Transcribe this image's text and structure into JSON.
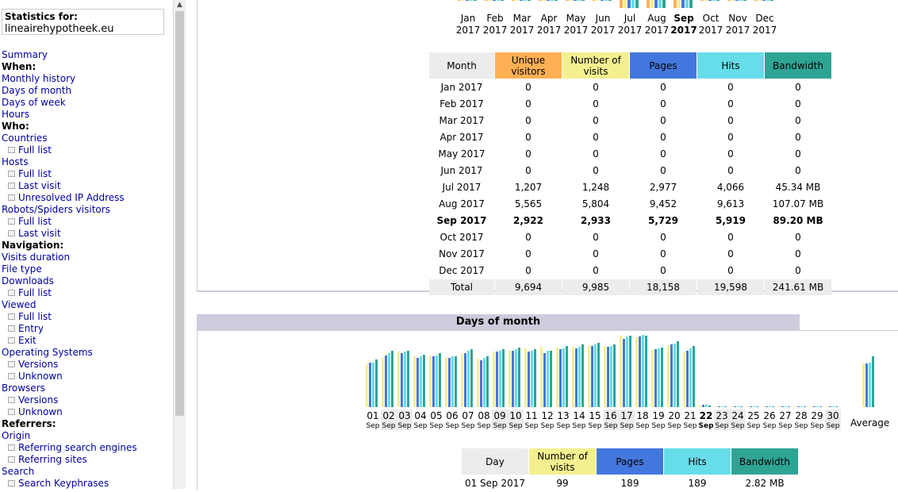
{
  "sidebar": {
    "stats_label": "Statistics for:",
    "site": "lineairehypotheek.eu",
    "menu": [
      {
        "text": "Summary",
        "type": "link"
      },
      {
        "text": "When:",
        "type": "head"
      },
      {
        "text": "Monthly history",
        "type": "link"
      },
      {
        "text": "Days of month",
        "type": "link"
      },
      {
        "text": "Days of week",
        "type": "link"
      },
      {
        "text": "Hours",
        "type": "link"
      },
      {
        "text": "Who:",
        "type": "head"
      },
      {
        "text": "Countries",
        "type": "link"
      },
      {
        "text": "Full list",
        "type": "sub"
      },
      {
        "text": "Hosts",
        "type": "link"
      },
      {
        "text": "Full list",
        "type": "sub"
      },
      {
        "text": "Last visit",
        "type": "sub"
      },
      {
        "text": "Unresolved IP Address",
        "type": "sub"
      },
      {
        "text": "Robots/Spiders visitors",
        "type": "link"
      },
      {
        "text": "Full list",
        "type": "sub"
      },
      {
        "text": "Last visit",
        "type": "sub"
      },
      {
        "text": "Navigation:",
        "type": "head"
      },
      {
        "text": "Visits duration",
        "type": "link"
      },
      {
        "text": "File type",
        "type": "link"
      },
      {
        "text": "Downloads",
        "type": "link"
      },
      {
        "text": "Full list",
        "type": "sub"
      },
      {
        "text": "Viewed",
        "type": "link"
      },
      {
        "text": "Full list",
        "type": "sub"
      },
      {
        "text": "Entry",
        "type": "sub"
      },
      {
        "text": "Exit",
        "type": "sub"
      },
      {
        "text": "Operating Systems",
        "type": "link"
      },
      {
        "text": "Versions",
        "type": "sub"
      },
      {
        "text": "Unknown",
        "type": "sub"
      },
      {
        "text": "Browsers",
        "type": "link"
      },
      {
        "text": "Versions",
        "type": "sub"
      },
      {
        "text": "Unknown",
        "type": "sub"
      },
      {
        "text": "Referrers:",
        "type": "head"
      },
      {
        "text": "Origin",
        "type": "link"
      },
      {
        "text": "Referring search engines",
        "type": "sub"
      },
      {
        "text": "Referring sites",
        "type": "sub"
      },
      {
        "text": "Search",
        "type": "link"
      },
      {
        "text": "Search Keyphrases",
        "type": "sub"
      }
    ]
  },
  "colors": {
    "unique": "#ffb055",
    "visits": "#f4f090",
    "pages": "#4477dd",
    "hits": "#66dde8",
    "bandwidth": "#2ea495"
  },
  "monthly": {
    "headers": {
      "month": "Month",
      "unique": "Unique visitors",
      "visits": "Number of visits",
      "pages": "Pages",
      "hits": "Hits",
      "bandwidth": "Bandwidth"
    },
    "labels": [
      [
        "Jan",
        "2017"
      ],
      [
        "Feb",
        "2017"
      ],
      [
        "Mar",
        "2017"
      ],
      [
        "Apr",
        "2017"
      ],
      [
        "May",
        "2017"
      ],
      [
        "Jun",
        "2017"
      ],
      [
        "Jul",
        "2017"
      ],
      [
        "Aug",
        "2017"
      ],
      [
        "Sep",
        "2017"
      ],
      [
        "Oct",
        "2017"
      ],
      [
        "Nov",
        "2017"
      ],
      [
        "Dec",
        "2017"
      ]
    ],
    "current_index": 8,
    "rows": [
      [
        "Jan 2017",
        "0",
        "0",
        "0",
        "0",
        "0"
      ],
      [
        "Feb 2017",
        "0",
        "0",
        "0",
        "0",
        "0"
      ],
      [
        "Mar 2017",
        "0",
        "0",
        "0",
        "0",
        "0"
      ],
      [
        "Apr 2017",
        "0",
        "0",
        "0",
        "0",
        "0"
      ],
      [
        "May 2017",
        "0",
        "0",
        "0",
        "0",
        "0"
      ],
      [
        "Jun 2017",
        "0",
        "0",
        "0",
        "0",
        "0"
      ],
      [
        "Jul 2017",
        "1,207",
        "1,248",
        "2,977",
        "4,066",
        "45.34 MB"
      ],
      [
        "Aug 2017",
        "5,565",
        "5,804",
        "9,452",
        "9,613",
        "107.07 MB"
      ],
      [
        "Sep 2017",
        "2,922",
        "2,933",
        "5,729",
        "5,919",
        "89.20 MB"
      ],
      [
        "Oct 2017",
        "0",
        "0",
        "0",
        "0",
        "0"
      ],
      [
        "Nov 2017",
        "0",
        "0",
        "0",
        "0",
        "0"
      ],
      [
        "Dec 2017",
        "0",
        "0",
        "0",
        "0",
        "0"
      ]
    ],
    "total": [
      "Total",
      "9,694",
      "9,985",
      "18,158",
      "19,598",
      "241.61 MB"
    ]
  },
  "days_of_month": {
    "title": "Days of month",
    "average_label": "Average",
    "month_abbr": "Sep",
    "days": [
      "01",
      "02",
      "03",
      "04",
      "05",
      "06",
      "07",
      "08",
      "09",
      "10",
      "11",
      "12",
      "13",
      "14",
      "15",
      "16",
      "17",
      "18",
      "19",
      "20",
      "21",
      "22",
      "23",
      "24",
      "25",
      "26",
      "27",
      "28",
      "29",
      "30"
    ],
    "weekend": [
      2,
      3,
      9,
      10,
      16,
      17,
      23,
      24,
      30
    ],
    "current_day": 22,
    "chart_data": {
      "type": "bar",
      "categories": [
        "01",
        "02",
        "03",
        "04",
        "05",
        "06",
        "07",
        "08",
        "09",
        "10",
        "11",
        "12",
        "13",
        "14",
        "15",
        "16",
        "17",
        "18",
        "19",
        "20",
        "21",
        "22",
        "23",
        "24",
        "25",
        "26",
        "27",
        "28",
        "29",
        "30",
        "Average"
      ],
      "series": [
        {
          "name": "Number of visits",
          "values": [
            99,
            112,
            126,
            114,
            116,
            113,
            120,
            109,
            126,
            128,
            133,
            136,
            135,
            137,
            139,
            138,
            161,
            157,
            130,
            139,
            124,
            4,
            1,
            1,
            1,
            1,
            1,
            1,
            1,
            1,
            98
          ]
        },
        {
          "name": "Pages",
          "values": [
            189,
            220,
            230,
            210,
            215,
            210,
            230,
            200,
            235,
            240,
            235,
            230,
            245,
            250,
            260,
            255,
            290,
            300,
            245,
            265,
            240,
            10,
            1,
            1,
            1,
            1,
            1,
            1,
            1,
            1,
            185
          ]
        },
        {
          "name": "Hits",
          "values": [
            189,
            230,
            235,
            215,
            220,
            215,
            240,
            210,
            240,
            245,
            240,
            240,
            250,
            255,
            265,
            260,
            300,
            305,
            250,
            270,
            250,
            10,
            1,
            1,
            1,
            1,
            1,
            1,
            1,
            1,
            190
          ]
        },
        {
          "name": "Bandwidth",
          "values": [
            2.82,
            3.3,
            3.3,
            3.1,
            3.2,
            3.0,
            3.4,
            3.0,
            3.4,
            3.5,
            3.4,
            3.3,
            3.6,
            3.7,
            3.8,
            3.7,
            4.2,
            4.2,
            3.5,
            3.9,
            3.6,
            0.1,
            0.02,
            0.02,
            0.02,
            0.02,
            0.02,
            0.02,
            0.02,
            0.02,
            2.97
          ]
        }
      ]
    },
    "headers": {
      "day": "Day",
      "visits": "Number of visits",
      "pages": "Pages",
      "hits": "Hits",
      "bandwidth": "Bandwidth"
    },
    "first_row": [
      "01 Sep 2017",
      "99",
      "189",
      "189",
      "2.82 MB"
    ]
  }
}
